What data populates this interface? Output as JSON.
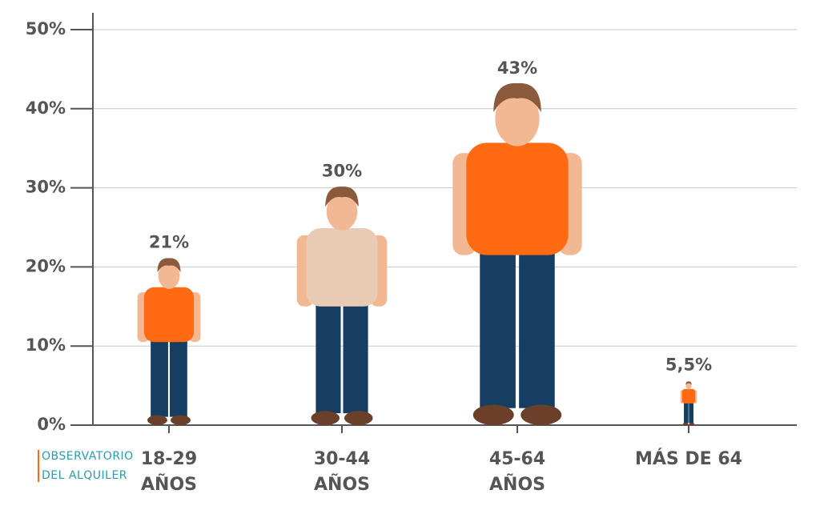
{
  "chart_data": {
    "type": "pictogram",
    "categories": [
      [
        "18-29",
        "AÑOS"
      ],
      [
        "30-44",
        "AÑOS"
      ],
      [
        "45-64",
        "AÑOS"
      ],
      [
        "MÁS DE 64"
      ]
    ],
    "values": [
      21,
      30,
      43,
      5.5
    ],
    "value_labels": [
      "21%",
      "30%",
      "43%",
      "5,5%"
    ],
    "colors": [
      "#ff6a13",
      "#e9cbb5",
      "#ff6a13",
      "#ff6a13"
    ],
    "ylim": [
      0,
      50
    ],
    "yticks": [
      {
        "value": 0,
        "label": "0%"
      },
      {
        "value": 10,
        "label": "10%"
      },
      {
        "value": 20,
        "label": "20%"
      },
      {
        "value": 30,
        "label": "30%"
      },
      {
        "value": 40,
        "label": "40%"
      },
      {
        "value": 50,
        "label": "50%"
      }
    ],
    "grid": true,
    "source": [
      "OBSERVATORIO",
      "DEL ALQUILER"
    ]
  }
}
